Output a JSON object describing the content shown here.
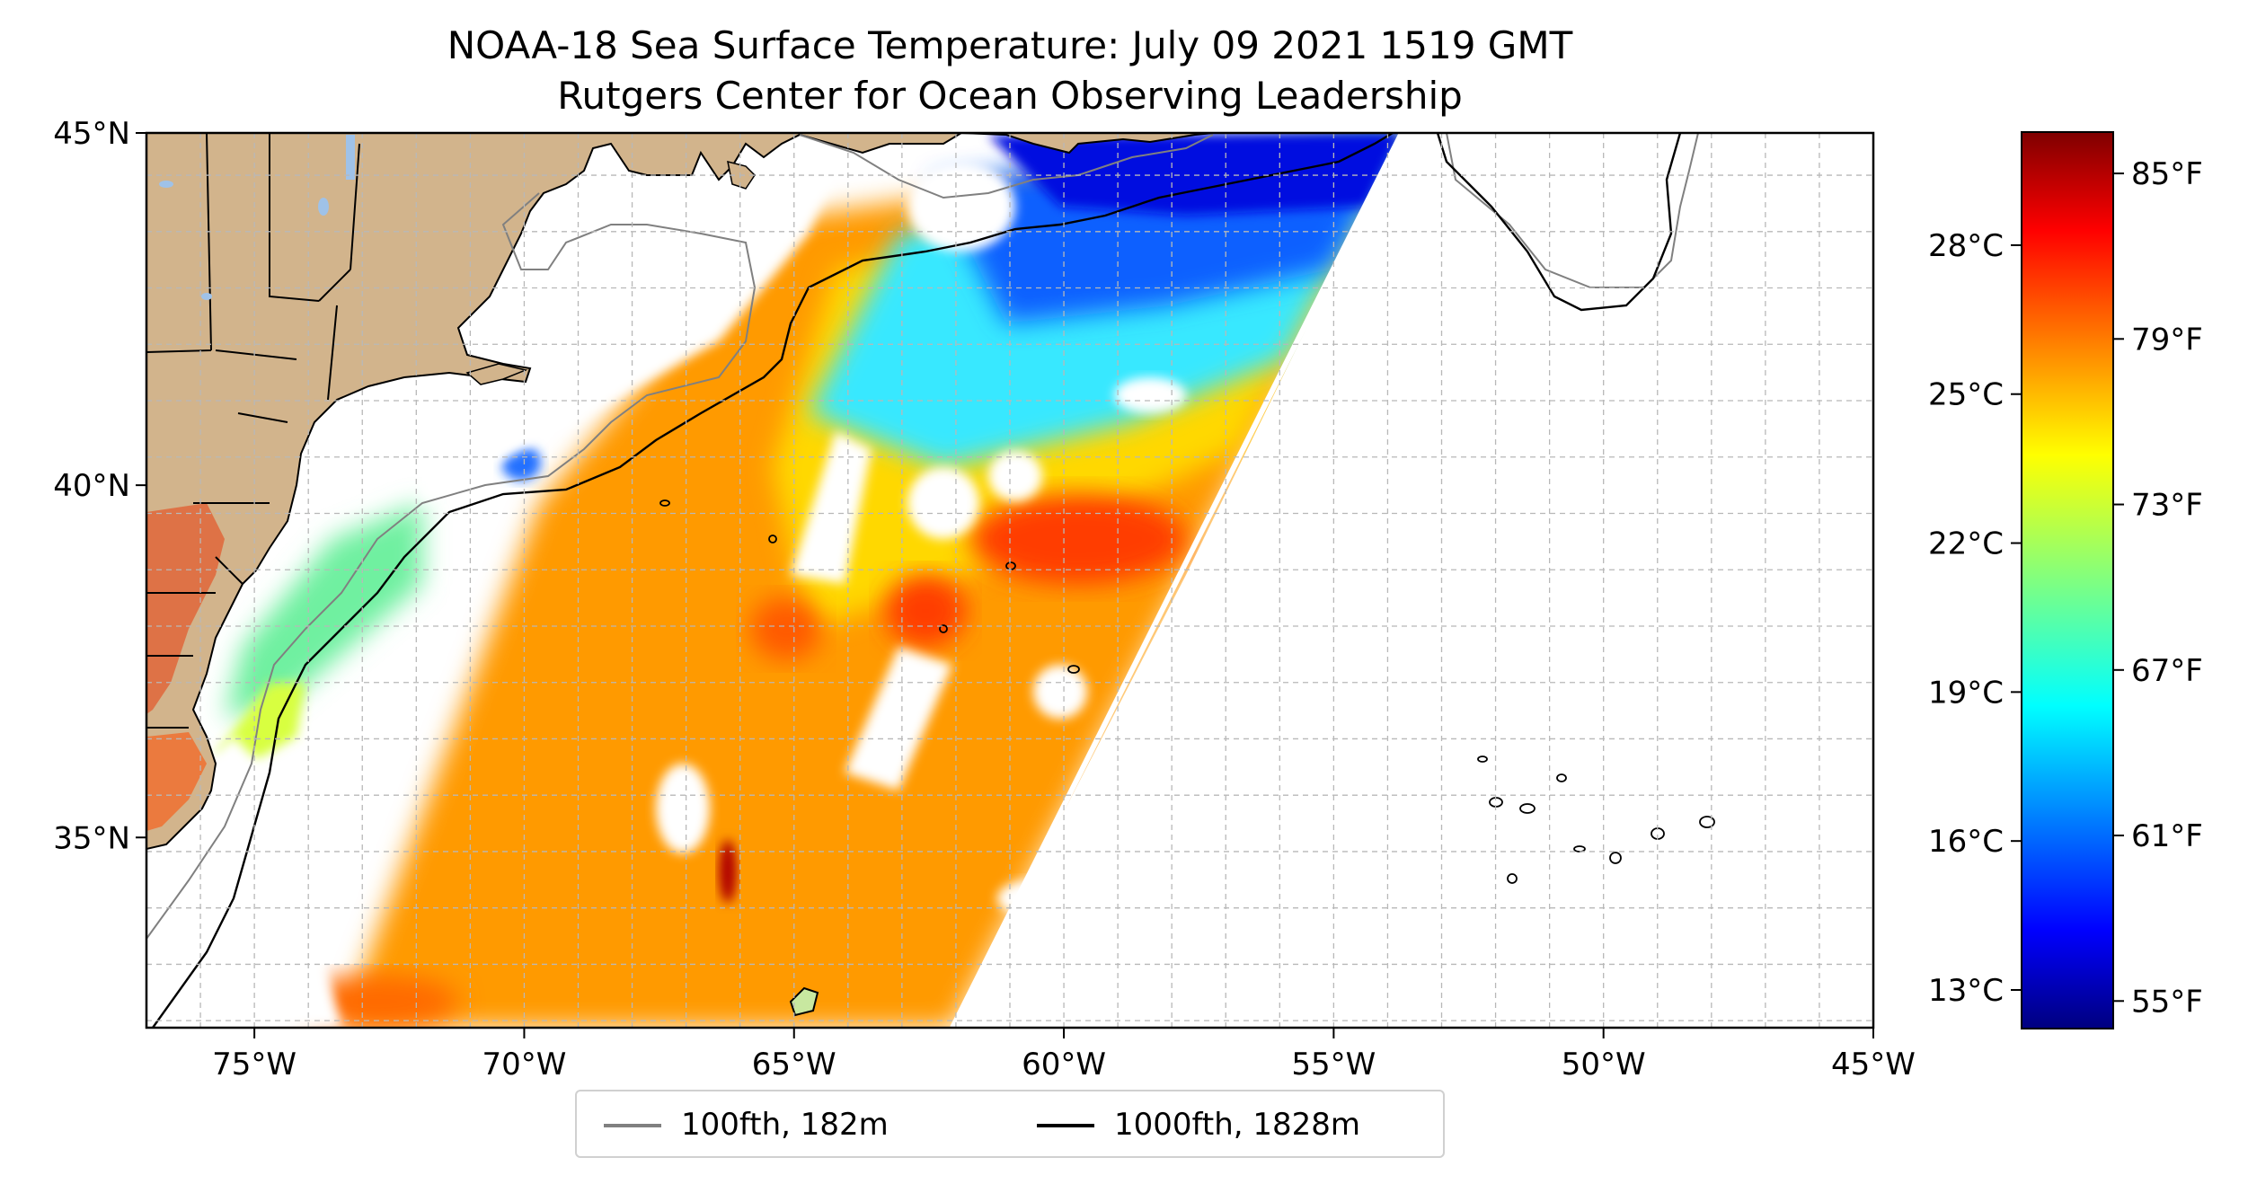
{
  "title": {
    "line1": "NOAA-18 Sea Surface Temperature: July 09 2021 1519 GMT",
    "line2": "Rutgers Center for Ocean Observing Leadership"
  },
  "map": {
    "lon_range": [
      -77,
      -45
    ],
    "lat_range": [
      32.3,
      45
    ],
    "lon_ticks": [
      {
        "value": -75,
        "label": "75°W"
      },
      {
        "value": -70,
        "label": "70°W"
      },
      {
        "value": -65,
        "label": "65°W"
      },
      {
        "value": -60,
        "label": "60°W"
      },
      {
        "value": -55,
        "label": "55°W"
      },
      {
        "value": -50,
        "label": "50°W"
      },
      {
        "value": -45,
        "label": "45°W"
      }
    ],
    "lat_ticks": [
      {
        "value": 45,
        "label": "45°N"
      },
      {
        "value": 40,
        "label": "40°N"
      },
      {
        "value": 35,
        "label": "35°N"
      }
    ],
    "gridlines": true,
    "colors": {
      "land": "#d2b48c",
      "lakes": "#9fc2e8",
      "coast": "#000000",
      "grid": "#b8b8b8"
    }
  },
  "colorbar": {
    "colormap": "jet",
    "celsius_ticks": [
      {
        "value": 28,
        "label": "28°C"
      },
      {
        "value": 25,
        "label": "25°C"
      },
      {
        "value": 22,
        "label": "22°C"
      },
      {
        "value": 19,
        "label": "19°C"
      },
      {
        "value": 16,
        "label": "16°C"
      },
      {
        "value": 13,
        "label": "13°C"
      }
    ],
    "fahrenheit_ticks": [
      {
        "value": 85,
        "label": "85°F"
      },
      {
        "value": 79,
        "label": "79°F"
      },
      {
        "value": 73,
        "label": "73°F"
      },
      {
        "value": 67,
        "label": "67°F"
      },
      {
        "value": 61,
        "label": "61°F"
      },
      {
        "value": 55,
        "label": "55°F"
      }
    ],
    "range_f": [
      54,
      86.5
    ]
  },
  "legend": {
    "items": [
      {
        "label": "100fth, 182m",
        "color": "#808080"
      },
      {
        "label": "1000fth, 1828m",
        "color": "#000000"
      }
    ]
  }
}
